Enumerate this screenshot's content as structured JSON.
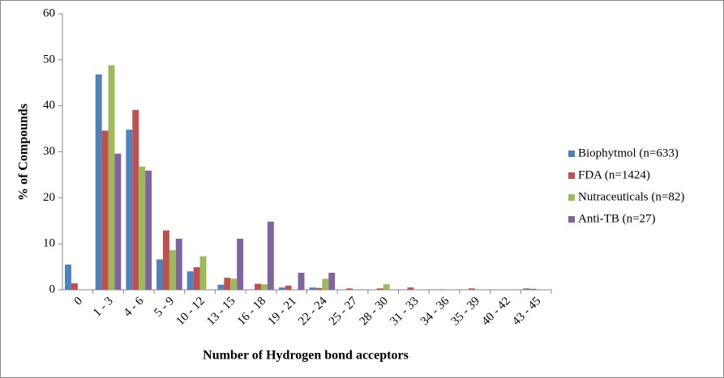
{
  "chart_data": {
    "type": "bar",
    "ylabel": "% of Compounds",
    "xlabel": "Number of Hydrogen bond acceptors",
    "categories": [
      "0",
      "1 - 3",
      "4 - 6",
      "5 - 9",
      "10 - 12",
      "13 - 15",
      "16 - 18",
      "19 - 21",
      "22 - 24",
      "25 - 27",
      "28 - 30",
      "31 - 33",
      "34 - 36",
      "35 - 39",
      "40 - 42",
      "43 - 45"
    ],
    "series": [
      {
        "name": "Biophytmol (n=633)",
        "color": "#4f81bd",
        "values": [
          5.5,
          46.8,
          34.8,
          6.6,
          4.0,
          1.1,
          0,
          0.5,
          0.5,
          0,
          0,
          0,
          0,
          0,
          0,
          0.3
        ]
      },
      {
        "name": "FDA (n=1424)",
        "color": "#c0504d",
        "values": [
          1.4,
          34.6,
          39.1,
          12.9,
          4.9,
          2.6,
          1.3,
          0.9,
          0.4,
          0.3,
          0.3,
          0.5,
          0.1,
          0.3,
          0,
          0.2
        ]
      },
      {
        "name": "Nutraceuticals (n=82)",
        "color": "#9bbb59",
        "values": [
          0,
          48.8,
          26.8,
          8.6,
          7.3,
          2.4,
          1.2,
          0,
          2.4,
          0,
          1.2,
          0,
          0,
          0,
          0,
          0
        ]
      },
      {
        "name": "Anti-TB (n=27)",
        "color": "#8064a2",
        "values": [
          0,
          29.6,
          25.9,
          11.1,
          0,
          11.1,
          14.8,
          3.7,
          3.7,
          0,
          0,
          0,
          0,
          0,
          0,
          0
        ]
      }
    ],
    "ylim": [
      0,
      60
    ],
    "yticks": [
      0,
      10,
      20,
      30,
      40,
      50,
      60
    ],
    "legend": "right"
  }
}
